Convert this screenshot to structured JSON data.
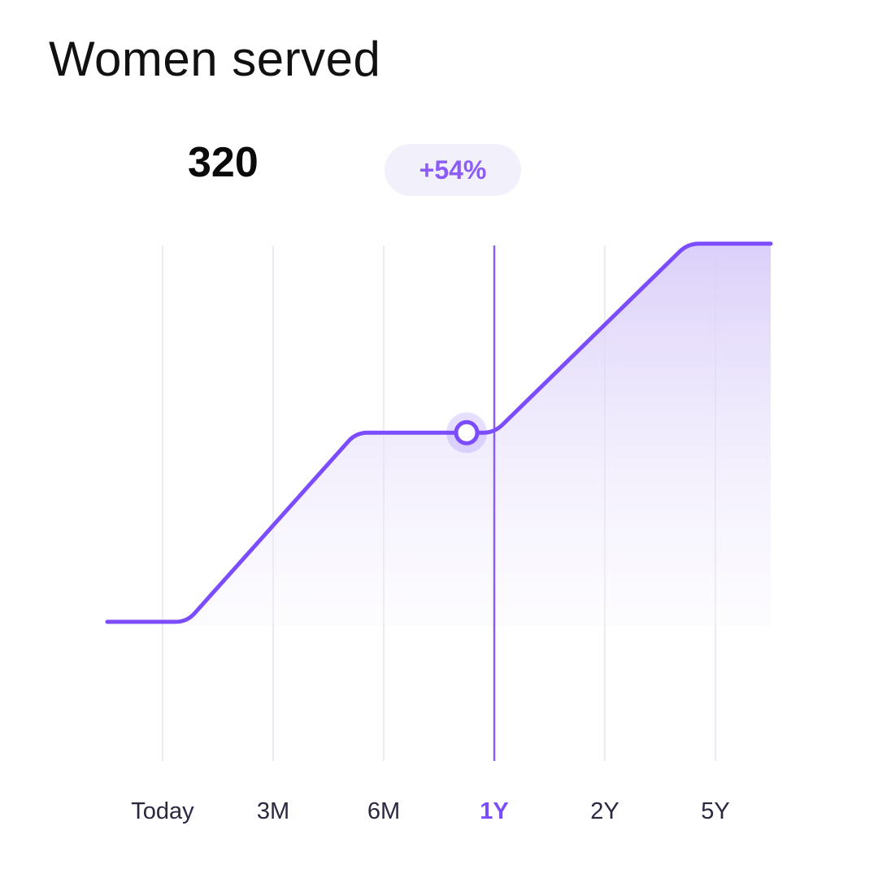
{
  "header": {
    "title": "Women served",
    "value": "320",
    "change": "+54%"
  },
  "chart_data": {
    "type": "area",
    "categories": [
      "Today",
      "3M",
      "6M",
      "1Y",
      "2Y",
      "5Y"
    ],
    "selected_category": "1Y",
    "series": [
      {
        "points": [
          {
            "x": -0.5,
            "y": 208
          },
          {
            "x": 0.22,
            "y": 208
          },
          {
            "x": 1.75,
            "y": 320
          },
          {
            "x": 2.65,
            "y": 320
          },
          {
            "x": 3.0,
            "y": 320
          },
          {
            "x": 4.75,
            "y": 432
          },
          {
            "x": 5.5,
            "y": 432
          }
        ],
        "marker": {
          "x": 2.75,
          "y": 320
        }
      }
    ],
    "ylim": [
      90,
      480
    ],
    "grid": true,
    "colors": {
      "line": "#7c4dff",
      "fill": "#ddd3f9",
      "grid": "#ecebf3",
      "selected_line": "#8b5cf6"
    }
  }
}
